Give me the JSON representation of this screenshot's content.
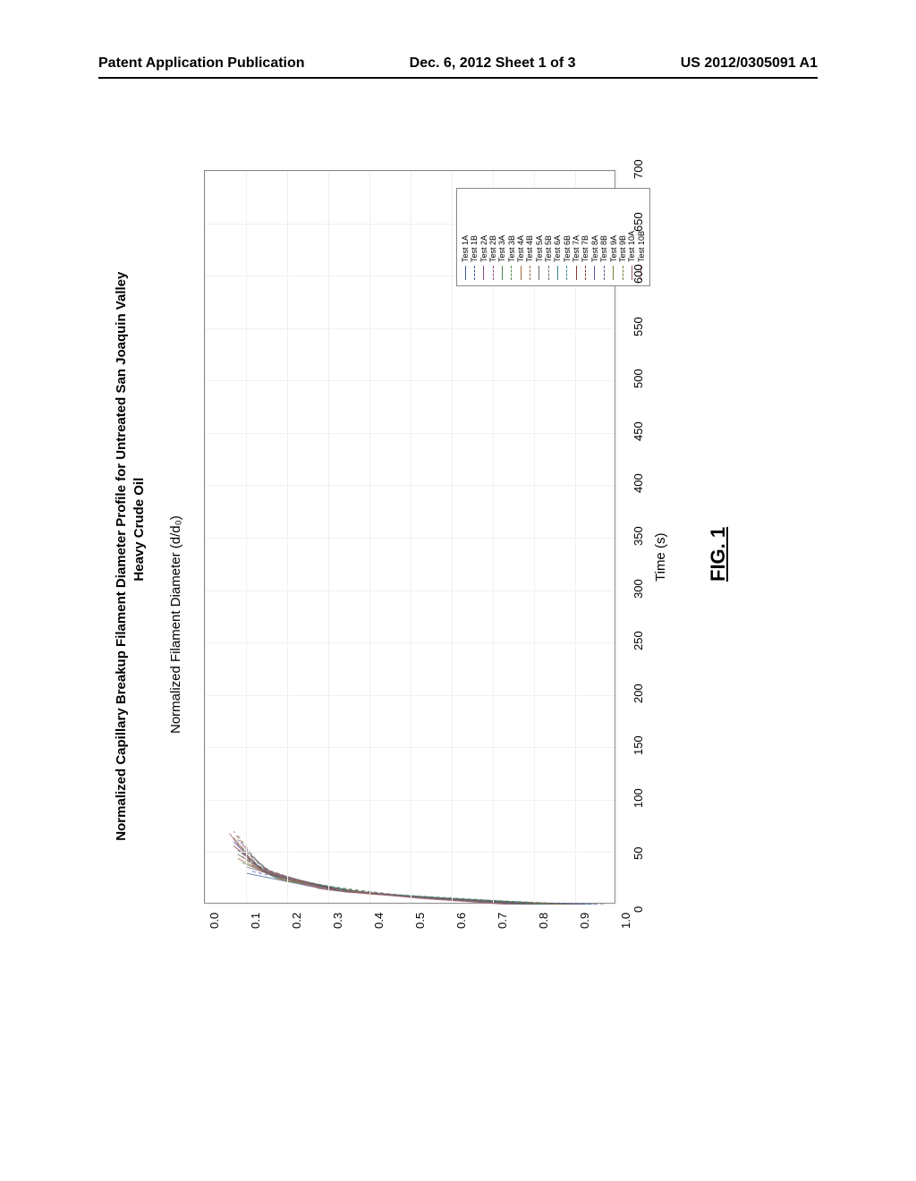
{
  "header": {
    "left": "Patent Application Publication",
    "center": "Dec. 6, 2012   Sheet 1 of 3",
    "right": "US 2012/0305091 A1"
  },
  "figure": {
    "label": "FIG. 1",
    "chart": {
      "type": "line",
      "title_line1": "Normalized Capillary Breakup Filament Diameter Profile for Untreated San Joaquin Valley",
      "title_line2": "Heavy Crude Oil",
      "title_fontsize": 15,
      "x_label": "Normalized Filament Diameter (d/d₀)",
      "y_label": "Time (s)",
      "label_fontsize": 15,
      "tick_fontsize": 13,
      "background_color": "#ffffff",
      "grid_color": "#f0f0f0",
      "axis_color": "#888888",
      "xlim": [
        0.0,
        1.0
      ],
      "xtick_step": 0.1,
      "xticks": [
        "0.0",
        "0.1",
        "0.2",
        "0.3",
        "0.4",
        "0.5",
        "0.6",
        "0.7",
        "0.8",
        "0.9",
        "1.0"
      ],
      "ylim": [
        0,
        700
      ],
      "ytick_step": 50,
      "yticks": [
        "0",
        "50",
        "100",
        "150",
        "200",
        "250",
        "300",
        "350",
        "400",
        "450",
        "500",
        "550",
        "600",
        "650",
        "700"
      ],
      "legend_position": "top-right-inside",
      "legend": [
        {
          "label": "Test 1A",
          "color": "#3a5fa0",
          "dash": "solid"
        },
        {
          "label": "Test 1B",
          "color": "#3a5fa0",
          "dash": "dashed"
        },
        {
          "label": "Test 2A",
          "color": "#8a4a7a",
          "dash": "solid"
        },
        {
          "label": "Test 2B",
          "color": "#8a4a7a",
          "dash": "dashed"
        },
        {
          "label": "Test 3A",
          "color": "#4c8a4c",
          "dash": "solid"
        },
        {
          "label": "Test 3B",
          "color": "#4c8a4c",
          "dash": "dashed"
        },
        {
          "label": "Test 4A",
          "color": "#a06a3a",
          "dash": "solid"
        },
        {
          "label": "Test 4B",
          "color": "#a06a3a",
          "dash": "dashed"
        },
        {
          "label": "Test 5A",
          "color": "#6a6a6a",
          "dash": "solid"
        },
        {
          "label": "Test 5B",
          "color": "#6a6a6a",
          "dash": "dashed"
        },
        {
          "label": "Test 6A",
          "color": "#3a8a8a",
          "dash": "solid"
        },
        {
          "label": "Test 6B",
          "color": "#3a8a8a",
          "dash": "dashed"
        },
        {
          "label": "Test 7A",
          "color": "#8a3a3a",
          "dash": "solid"
        },
        {
          "label": "Test 7B",
          "color": "#8a3a3a",
          "dash": "dashed"
        },
        {
          "label": "Test 8A",
          "color": "#5a5aa0",
          "dash": "solid"
        },
        {
          "label": "Test 8B",
          "color": "#5a5aa0",
          "dash": "dashed"
        },
        {
          "label": "Test 9A",
          "color": "#7a7a3a",
          "dash": "solid"
        },
        {
          "label": "Test 9B",
          "color": "#7a7a3a",
          "dash": "dashed"
        },
        {
          "label": "Test 10A",
          "color": "#a05a7a",
          "dash": "solid"
        },
        {
          "label": "Test 10B",
          "color": "#a05a7a",
          "dash": "dashed"
        }
      ],
      "series": [
        {
          "name": "Test 1A",
          "color": "#3a5fa0",
          "dash": "solid",
          "points": [
            [
              0.95,
              0
            ],
            [
              0.78,
              2
            ],
            [
              0.55,
              6
            ],
            [
              0.3,
              14
            ],
            [
              0.1,
              30
            ]
          ]
        },
        {
          "name": "Test 1B",
          "color": "#3a5fa0",
          "dash": "dashed",
          "points": [
            [
              0.97,
              0
            ],
            [
              0.8,
              2
            ],
            [
              0.58,
              6
            ],
            [
              0.32,
              14
            ],
            [
              0.11,
              32
            ]
          ]
        },
        {
          "name": "Test 2A",
          "color": "#8a4a7a",
          "dash": "solid",
          "points": [
            [
              0.9,
              0
            ],
            [
              0.72,
              3
            ],
            [
              0.48,
              8
            ],
            [
              0.25,
              18
            ],
            [
              0.1,
              36
            ]
          ]
        },
        {
          "name": "Test 2B",
          "color": "#8a4a7a",
          "dash": "dashed",
          "points": [
            [
              0.92,
              0
            ],
            [
              0.74,
              3
            ],
            [
              0.5,
              8
            ],
            [
              0.27,
              18
            ],
            [
              0.11,
              38
            ]
          ]
        },
        {
          "name": "Test 3A",
          "color": "#4c8a4c",
          "dash": "solid",
          "points": [
            [
              0.88,
              0
            ],
            [
              0.68,
              4
            ],
            [
              0.42,
              10
            ],
            [
              0.2,
              22
            ],
            [
              0.09,
              40
            ]
          ]
        },
        {
          "name": "Test 3B",
          "color": "#4c8a4c",
          "dash": "dashed",
          "points": [
            [
              0.89,
              0
            ],
            [
              0.7,
              4
            ],
            [
              0.44,
              10
            ],
            [
              0.22,
              22
            ],
            [
              0.1,
              42
            ]
          ]
        },
        {
          "name": "Test 4A",
          "color": "#a06a3a",
          "dash": "solid",
          "points": [
            [
              0.86,
              0
            ],
            [
              0.65,
              4
            ],
            [
              0.4,
              10
            ],
            [
              0.18,
              24
            ],
            [
              0.08,
              44
            ]
          ]
        },
        {
          "name": "Test 4B",
          "color": "#a06a3a",
          "dash": "dashed",
          "points": [
            [
              0.87,
              0
            ],
            [
              0.66,
              4
            ],
            [
              0.41,
              10
            ],
            [
              0.19,
              24
            ],
            [
              0.09,
              46
            ]
          ]
        },
        {
          "name": "Test 5A",
          "color": "#6a6a6a",
          "dash": "solid",
          "points": [
            [
              0.84,
              0
            ],
            [
              0.62,
              5
            ],
            [
              0.38,
              11
            ],
            [
              0.17,
              26
            ],
            [
              0.08,
              48
            ]
          ]
        },
        {
          "name": "Test 5B",
          "color": "#6a6a6a",
          "dash": "dashed",
          "points": [
            [
              0.85,
              0
            ],
            [
              0.63,
              5
            ],
            [
              0.39,
              11
            ],
            [
              0.18,
              26
            ],
            [
              0.09,
              50
            ]
          ]
        },
        {
          "name": "Test 6A",
          "color": "#3a8a8a",
          "dash": "solid",
          "points": [
            [
              0.82,
              0
            ],
            [
              0.6,
              5
            ],
            [
              0.36,
              12
            ],
            [
              0.16,
              28
            ],
            [
              0.08,
              52
            ]
          ]
        },
        {
          "name": "Test 6B",
          "color": "#3a8a8a",
          "dash": "dashed",
          "points": [
            [
              0.83,
              0
            ],
            [
              0.61,
              5
            ],
            [
              0.37,
              12
            ],
            [
              0.17,
              28
            ],
            [
              0.09,
              54
            ]
          ]
        },
        {
          "name": "Test 7A",
          "color": "#8a3a3a",
          "dash": "solid",
          "points": [
            [
              0.8,
              0
            ],
            [
              0.58,
              5
            ],
            [
              0.34,
              12
            ],
            [
              0.15,
              30
            ],
            [
              0.07,
              56
            ]
          ]
        },
        {
          "name": "Test 7B",
          "color": "#8a3a3a",
          "dash": "dashed",
          "points": [
            [
              0.81,
              0
            ],
            [
              0.59,
              5
            ],
            [
              0.35,
              12
            ],
            [
              0.16,
              30
            ],
            [
              0.08,
              58
            ]
          ]
        },
        {
          "name": "Test 8A",
          "color": "#5a5aa0",
          "dash": "solid",
          "points": [
            [
              0.78,
              0
            ],
            [
              0.56,
              6
            ],
            [
              0.32,
              13
            ],
            [
              0.14,
              32
            ],
            [
              0.07,
              60
            ]
          ]
        },
        {
          "name": "Test 8B",
          "color": "#5a5aa0",
          "dash": "dashed",
          "points": [
            [
              0.79,
              0
            ],
            [
              0.57,
              6
            ],
            [
              0.33,
              13
            ],
            [
              0.15,
              32
            ],
            [
              0.08,
              62
            ]
          ]
        },
        {
          "name": "Test 9A",
          "color": "#7a7a3a",
          "dash": "solid",
          "points": [
            [
              0.76,
              0
            ],
            [
              0.54,
              6
            ],
            [
              0.3,
              14
            ],
            [
              0.13,
              34
            ],
            [
              0.07,
              64
            ]
          ]
        },
        {
          "name": "Test 9B",
          "color": "#7a7a3a",
          "dash": "dashed",
          "points": [
            [
              0.77,
              0
            ],
            [
              0.55,
              6
            ],
            [
              0.31,
              14
            ],
            [
              0.14,
              34
            ],
            [
              0.08,
              66
            ]
          ]
        },
        {
          "name": "Test 10A",
          "color": "#a05a7a",
          "dash": "solid",
          "points": [
            [
              0.74,
              0
            ],
            [
              0.52,
              6
            ],
            [
              0.28,
              15
            ],
            [
              0.12,
              36
            ],
            [
              0.06,
              68
            ]
          ]
        },
        {
          "name": "Test 10B",
          "color": "#a05a7a",
          "dash": "dashed",
          "points": [
            [
              0.75,
              0
            ],
            [
              0.53,
              6
            ],
            [
              0.29,
              15
            ],
            [
              0.13,
              36
            ],
            [
              0.07,
              70
            ]
          ]
        }
      ]
    }
  }
}
